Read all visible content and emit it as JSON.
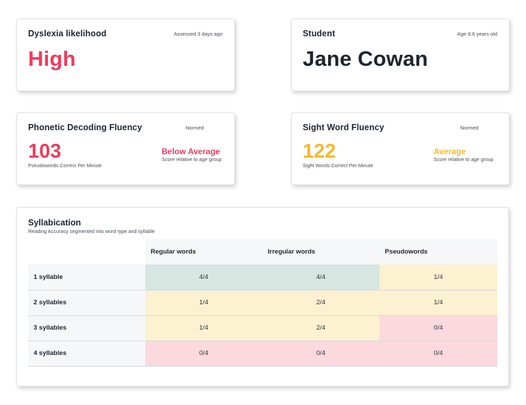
{
  "colors": {
    "high": "#ee3b5d",
    "below_average": "#ee3b5d",
    "average": "#f7b92a",
    "dark": "#1d2530"
  },
  "dyslexia": {
    "title": "Dyslexia likelihood",
    "meta": "Assessed 3 days ago",
    "value": "High"
  },
  "student": {
    "title": "Student",
    "meta": "Age 8.6 years old",
    "name": "Jane Cowan"
  },
  "phonetic": {
    "title": "Phonetic Decoding Fluency",
    "meta": "Normed",
    "score": "103",
    "score_sub": "Pseudowords Correct Per Minute",
    "category": "Below Average",
    "category_sub": "Score relative to age group"
  },
  "sight": {
    "title": "Sight Word Fluency",
    "meta": "Normed",
    "score": "122",
    "score_sub": "Sight Words Correct Per Minute",
    "category": "Average",
    "category_sub": "Score relative to age group"
  },
  "syllabication": {
    "title": "Syllabication",
    "subtitle": "Reading Accuracy segmented into word type and syllable",
    "columns": [
      "Regular words",
      "Irregular words",
      "Pseudowords"
    ],
    "rows": [
      {
        "label": "1 syllable",
        "cells": [
          {
            "value": "4/4",
            "level": "green"
          },
          {
            "value": "4/4",
            "level": "green"
          },
          {
            "value": "1/4",
            "level": "yellow"
          }
        ]
      },
      {
        "label": "2 syllables",
        "cells": [
          {
            "value": "1/4",
            "level": "yellow"
          },
          {
            "value": "2/4",
            "level": "yellow"
          },
          {
            "value": "1/4",
            "level": "yellow"
          }
        ]
      },
      {
        "label": "3 syllables",
        "cells": [
          {
            "value": "1/4",
            "level": "yellow"
          },
          {
            "value": "2/4",
            "level": "yellow"
          },
          {
            "value": "0/4",
            "level": "red"
          }
        ]
      },
      {
        "label": "4 syllables",
        "cells": [
          {
            "value": "0/4",
            "level": "red"
          },
          {
            "value": "0/4",
            "level": "red"
          },
          {
            "value": "0/4",
            "level": "red"
          }
        ]
      }
    ]
  }
}
